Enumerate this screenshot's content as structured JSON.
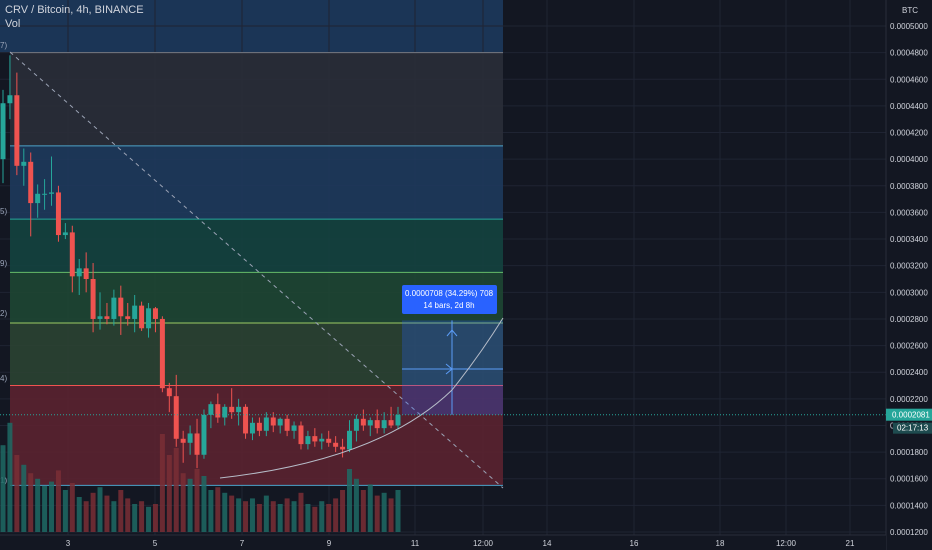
{
  "header": {
    "title": "CRV / Bitcoin, 4h, BINANCE",
    "indicator": "Vol",
    "currency": "BTC"
  },
  "colors": {
    "background": "#131722",
    "up": "#26a69a",
    "down": "#ef5350",
    "grid": "#1f2433",
    "axis_text": "#d1d4dc"
  },
  "chart_data": {
    "type": "candlestick",
    "y_ticks": [
      "0.0005000",
      "0.0004800",
      "0.0004600",
      "0.0004400",
      "0.0004200",
      "0.0004000",
      "0.0003800",
      "0.0003600",
      "0.0003400",
      "0.0003200",
      "0.0003000",
      "0.0002800",
      "0.0002600",
      "0.0002400",
      "0.0002200",
      "0.0002000",
      "0.0001800",
      "0.0001600",
      "0.0001400",
      "0.0001200"
    ],
    "ylim": [
      0.00012,
      0.000504
    ],
    "x_ticks": [
      "3",
      "5",
      "7",
      "9",
      "11",
      "12:00",
      "14",
      "16",
      "18",
      "12:00",
      "21"
    ],
    "last_price": "0.0002081",
    "countdown": "02:17:13",
    "measure_label_1": "0.0000708 (34.29%) 708",
    "measure_label_2": "14 bars, 2d 8h",
    "fib_edge_labels": [
      "7)",
      "5)",
      "9)",
      "2)",
      "4)",
      "1)"
    ],
    "fib_levels": [
      {
        "price": 0.00048,
        "color": "#787b86",
        "fill": "#2a2e39"
      },
      {
        "price": 0.00041,
        "color": "#4da3c9",
        "fill": "#1e3a5c"
      },
      {
        "price": 0.000355,
        "color": "#26a69a",
        "fill": "#14423f"
      },
      {
        "price": 0.000315,
        "color": "#66bb6a",
        "fill": "#1e4633"
      },
      {
        "price": 0.000277,
        "color": "#9ccc65",
        "fill": "#2b4232"
      },
      {
        "price": 0.00023,
        "color": "#ef5350",
        "fill": "#5b2230"
      },
      {
        "price": 0.000155,
        "color": "#4da3c9",
        "fill": "#3a2232"
      }
    ],
    "candles": [
      {
        "o": 0.0004,
        "h": 0.000452,
        "l": 0.000382,
        "c": 0.000442
      },
      {
        "o": 0.000442,
        "h": 0.000478,
        "l": 0.00043,
        "c": 0.000448
      },
      {
        "o": 0.000448,
        "h": 0.000465,
        "l": 0.000388,
        "c": 0.000395
      },
      {
        "o": 0.000395,
        "h": 0.000408,
        "l": 0.00038,
        "c": 0.000398
      },
      {
        "o": 0.000398,
        "h": 0.000405,
        "l": 0.000342,
        "c": 0.000367
      },
      {
        "o": 0.000367,
        "h": 0.000381,
        "l": 0.000356,
        "c": 0.000374
      },
      {
        "o": 0.000374,
        "h": 0.000385,
        "l": 0.000362,
        "c": 0.000374
      },
      {
        "o": 0.000374,
        "h": 0.000402,
        "l": 0.000365,
        "c": 0.000375
      },
      {
        "o": 0.000375,
        "h": 0.00038,
        "l": 0.000338,
        "c": 0.000343
      },
      {
        "o": 0.000343,
        "h": 0.000352,
        "l": 0.00034,
        "c": 0.000345
      },
      {
        "o": 0.000345,
        "h": 0.00035,
        "l": 0.0003,
        "c": 0.000312
      },
      {
        "o": 0.000312,
        "h": 0.000325,
        "l": 0.000298,
        "c": 0.000318
      },
      {
        "o": 0.000318,
        "h": 0.00033,
        "l": 0.0003,
        "c": 0.00031
      },
      {
        "o": 0.00031,
        "h": 0.000322,
        "l": 0.00027,
        "c": 0.00028
      },
      {
        "o": 0.00028,
        "h": 0.0003,
        "l": 0.000272,
        "c": 0.000282
      },
      {
        "o": 0.000282,
        "h": 0.000292,
        "l": 0.000276,
        "c": 0.00028
      },
      {
        "o": 0.00028,
        "h": 0.000302,
        "l": 0.000275,
        "c": 0.000296
      },
      {
        "o": 0.000296,
        "h": 0.000305,
        "l": 0.000268,
        "c": 0.000282
      },
      {
        "o": 0.000282,
        "h": 0.000292,
        "l": 0.000275,
        "c": 0.00028
      },
      {
        "o": 0.00028,
        "h": 0.000298,
        "l": 0.00027,
        "c": 0.00029
      },
      {
        "o": 0.00029,
        "h": 0.000293,
        "l": 0.000271,
        "c": 0.000273
      },
      {
        "o": 0.000273,
        "h": 0.000292,
        "l": 0.000266,
        "c": 0.000288
      },
      {
        "o": 0.000288,
        "h": 0.000289,
        "l": 0.00027,
        "c": 0.00028
      },
      {
        "o": 0.00028,
        "h": 0.000282,
        "l": 0.000225,
        "c": 0.000228
      },
      {
        "o": 0.000228,
        "h": 0.000232,
        "l": 0.00021,
        "c": 0.000222
      },
      {
        "o": 0.000222,
        "h": 0.000238,
        "l": 0.000184,
        "c": 0.00019
      },
      {
        "o": 0.00019,
        "h": 0.000196,
        "l": 0.000172,
        "c": 0.000187
      },
      {
        "o": 0.000187,
        "h": 0.0002,
        "l": 0.000178,
        "c": 0.000194
      },
      {
        "o": 0.000194,
        "h": 0.000205,
        "l": 0.000168,
        "c": 0.000178
      },
      {
        "o": 0.000178,
        "h": 0.000212,
        "l": 0.000175,
        "c": 0.000208
      },
      {
        "o": 0.000208,
        "h": 0.000218,
        "l": 0.000198,
        "c": 0.000216
      },
      {
        "o": 0.000216,
        "h": 0.000224,
        "l": 0.000202,
        "c": 0.000206
      },
      {
        "o": 0.000206,
        "h": 0.000216,
        "l": 0.0002,
        "c": 0.000214
      },
      {
        "o": 0.000214,
        "h": 0.000228,
        "l": 0.000205,
        "c": 0.00021
      },
      {
        "o": 0.00021,
        "h": 0.00022,
        "l": 0.0002,
        "c": 0.000214
      },
      {
        "o": 0.000214,
        "h": 0.000216,
        "l": 0.00019,
        "c": 0.000194
      },
      {
        "o": 0.000194,
        "h": 0.000206,
        "l": 0.000189,
        "c": 0.000202
      },
      {
        "o": 0.000202,
        "h": 0.000206,
        "l": 0.000192,
        "c": 0.000196
      },
      {
        "o": 0.000196,
        "h": 0.00021,
        "l": 0.000192,
        "c": 0.000206
      },
      {
        "o": 0.000206,
        "h": 0.00021,
        "l": 0.000195,
        "c": 0.0002
      },
      {
        "o": 0.0002,
        "h": 0.000206,
        "l": 0.000194,
        "c": 0.000205
      },
      {
        "o": 0.000205,
        "h": 0.000208,
        "l": 0.000192,
        "c": 0.000196
      },
      {
        "o": 0.000196,
        "h": 0.000203,
        "l": 0.00019,
        "c": 0.0002
      },
      {
        "o": 0.0002,
        "h": 0.000203,
        "l": 0.000182,
        "c": 0.000186
      },
      {
        "o": 0.000186,
        "h": 0.000196,
        "l": 0.000182,
        "c": 0.000192
      },
      {
        "o": 0.000192,
        "h": 0.000198,
        "l": 0.000184,
        "c": 0.000188
      },
      {
        "o": 0.000188,
        "h": 0.000194,
        "l": 0.000182,
        "c": 0.00019
      },
      {
        "o": 0.00019,
        "h": 0.000196,
        "l": 0.000184,
        "c": 0.000187
      },
      {
        "o": 0.000187,
        "h": 0.000192,
        "l": 0.00018,
        "c": 0.000184
      },
      {
        "o": 0.000184,
        "h": 0.00019,
        "l": 0.000176,
        "c": 0.000182
      },
      {
        "o": 0.000182,
        "h": 0.000204,
        "l": 0.00018,
        "c": 0.000196
      },
      {
        "o": 0.000196,
        "h": 0.000208,
        "l": 0.000188,
        "c": 0.000205
      },
      {
        "o": 0.000205,
        "h": 0.000212,
        "l": 0.000196,
        "c": 0.0002
      },
      {
        "o": 0.0002,
        "h": 0.000206,
        "l": 0.000192,
        "c": 0.000204
      },
      {
        "o": 0.000204,
        "h": 0.000212,
        "l": 0.000194,
        "c": 0.000198
      },
      {
        "o": 0.000198,
        "h": 0.00021,
        "l": 0.000194,
        "c": 0.000204
      },
      {
        "o": 0.000204,
        "h": 0.000214,
        "l": 0.000198,
        "c": 0.0002
      },
      {
        "o": 0.0002,
        "h": 0.000214,
        "l": 0.000197,
        "c": 0.000208
      }
    ],
    "volumes": [
      0.62,
      0.78,
      0.55,
      0.48,
      0.42,
      0.38,
      0.33,
      0.36,
      0.44,
      0.3,
      0.35,
      0.25,
      0.22,
      0.28,
      0.32,
      0.26,
      0.22,
      0.3,
      0.24,
      0.2,
      0.22,
      0.18,
      0.2,
      0.7,
      0.55,
      0.6,
      0.42,
      0.38,
      0.45,
      0.4,
      0.3,
      0.32,
      0.28,
      0.26,
      0.24,
      0.22,
      0.24,
      0.2,
      0.26,
      0.22,
      0.2,
      0.24,
      0.22,
      0.28,
      0.2,
      0.18,
      0.22,
      0.2,
      0.24,
      0.3,
      0.45,
      0.38,
      0.3,
      0.34,
      0.26,
      0.28,
      0.24,
      0.3
    ]
  }
}
